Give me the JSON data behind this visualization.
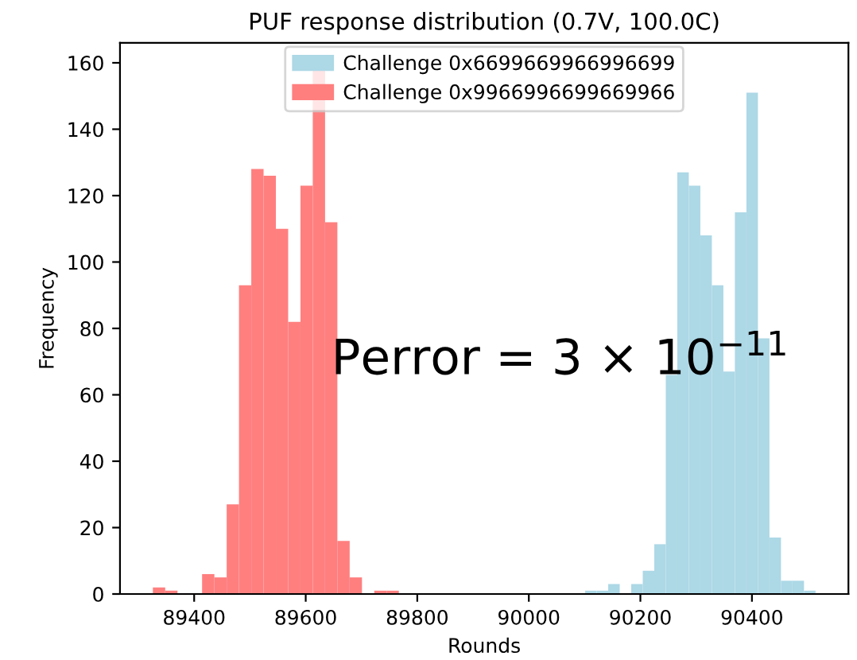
{
  "chart_data": {
    "type": "histogram",
    "title": "PUF response distribution (0.7V, 100.0C)",
    "xlabel": "Rounds",
    "ylabel": "Frequency",
    "bins": [
      89326,
      89348.05,
      89370.1,
      89414.2,
      89436.25,
      89458.3,
      89480.35,
      89502.4,
      89524.45,
      89546.5,
      89568.55,
      89590.6,
      89612.65,
      89634.7,
      89656.75,
      89678.8,
      89700.85,
      89722.9,
      89744.95,
      89767,
      90101,
      90121.65,
      90142.3,
      90162.95,
      90183.6,
      90204.25,
      90224.9,
      90245.55,
      90266.2,
      90286.85,
      90307.5,
      90328.15,
      90348.8,
      90369.45,
      90390.1,
      90410.75,
      90431.4,
      90452.05,
      90472.7,
      90493.35,
      90514
    ],
    "series": [
      {
        "name": "Challenge 0x6699669966996699",
        "color": "#add8e6",
        "values": [
          null,
          null,
          null,
          null,
          null,
          null,
          null,
          null,
          null,
          null,
          null,
          null,
          null,
          null,
          null,
          null,
          null,
          null,
          null,
          null,
          1,
          1,
          3,
          0,
          3,
          7,
          15,
          66,
          127,
          123,
          108,
          93,
          67,
          115,
          151,
          77,
          17,
          4,
          4,
          1
        ]
      },
      {
        "name": "Challenge 0x9966996699669966",
        "color": "#ff7f7f",
        "values": [
          2,
          1,
          0,
          6,
          5,
          27,
          93,
          128,
          126,
          110,
          82,
          123,
          158,
          112,
          16,
          5,
          0,
          1,
          1,
          null,
          null,
          null,
          null,
          null,
          null,
          null,
          null,
          null,
          null,
          null,
          null,
          null,
          null,
          null,
          null,
          null,
          null,
          null,
          null,
          null
        ]
      }
    ],
    "annotations": [
      "Perror = 3 × 10$^{−11}$"
    ],
    "xlim": [
      89267,
      90573
    ],
    "xticks": [
      89400,
      89600,
      89800,
      90000,
      90200,
      90400
    ],
    "ylim": [
      0,
      166
    ],
    "yticks": [
      0,
      20,
      40,
      60,
      80,
      100,
      120,
      140,
      160
    ],
    "legend": "top",
    "grid": false
  }
}
